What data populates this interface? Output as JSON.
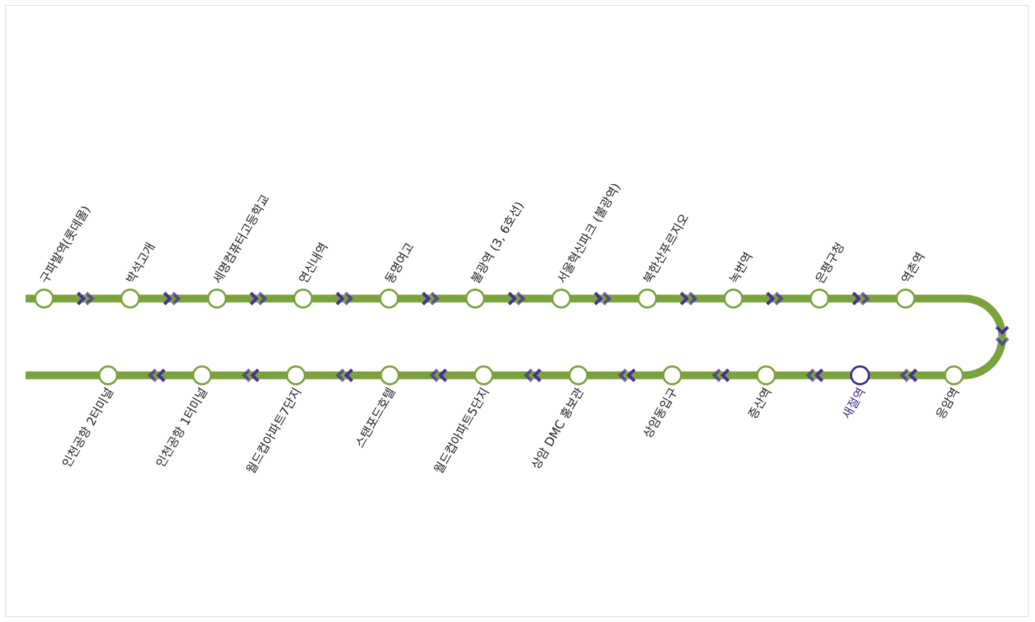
{
  "route": {
    "line_color": "#7aa33f",
    "arrow_color": "#4a2f99",
    "current_color": "#3f2a8f",
    "outbound_stops": [
      {
        "name": "구파발역(롯데몰)"
      },
      {
        "name": "박석고개"
      },
      {
        "name": "세명컴퓨터고등학교"
      },
      {
        "name": "연신내역"
      },
      {
        "name": "동명여고"
      },
      {
        "name": "불광역 (3, 6호선)"
      },
      {
        "name": "서울혁신파크 (불광역)"
      },
      {
        "name": "북한산푸르지오"
      },
      {
        "name": "녹번역"
      },
      {
        "name": "은평구청"
      },
      {
        "name": "역촌역"
      }
    ],
    "return_stops": [
      {
        "name": "응암역"
      },
      {
        "name": "새절역",
        "current": true
      },
      {
        "name": "증산역"
      },
      {
        "name": "상암동입구"
      },
      {
        "name": "상암 DMC 홍보관"
      },
      {
        "name": "월드컵아파트5단지"
      },
      {
        "name": "스탠포드호텔"
      },
      {
        "name": "월드컵아파트7단지"
      },
      {
        "name": "인천공항 1터미널"
      },
      {
        "name": "인천공항 2터미널"
      }
    ]
  }
}
